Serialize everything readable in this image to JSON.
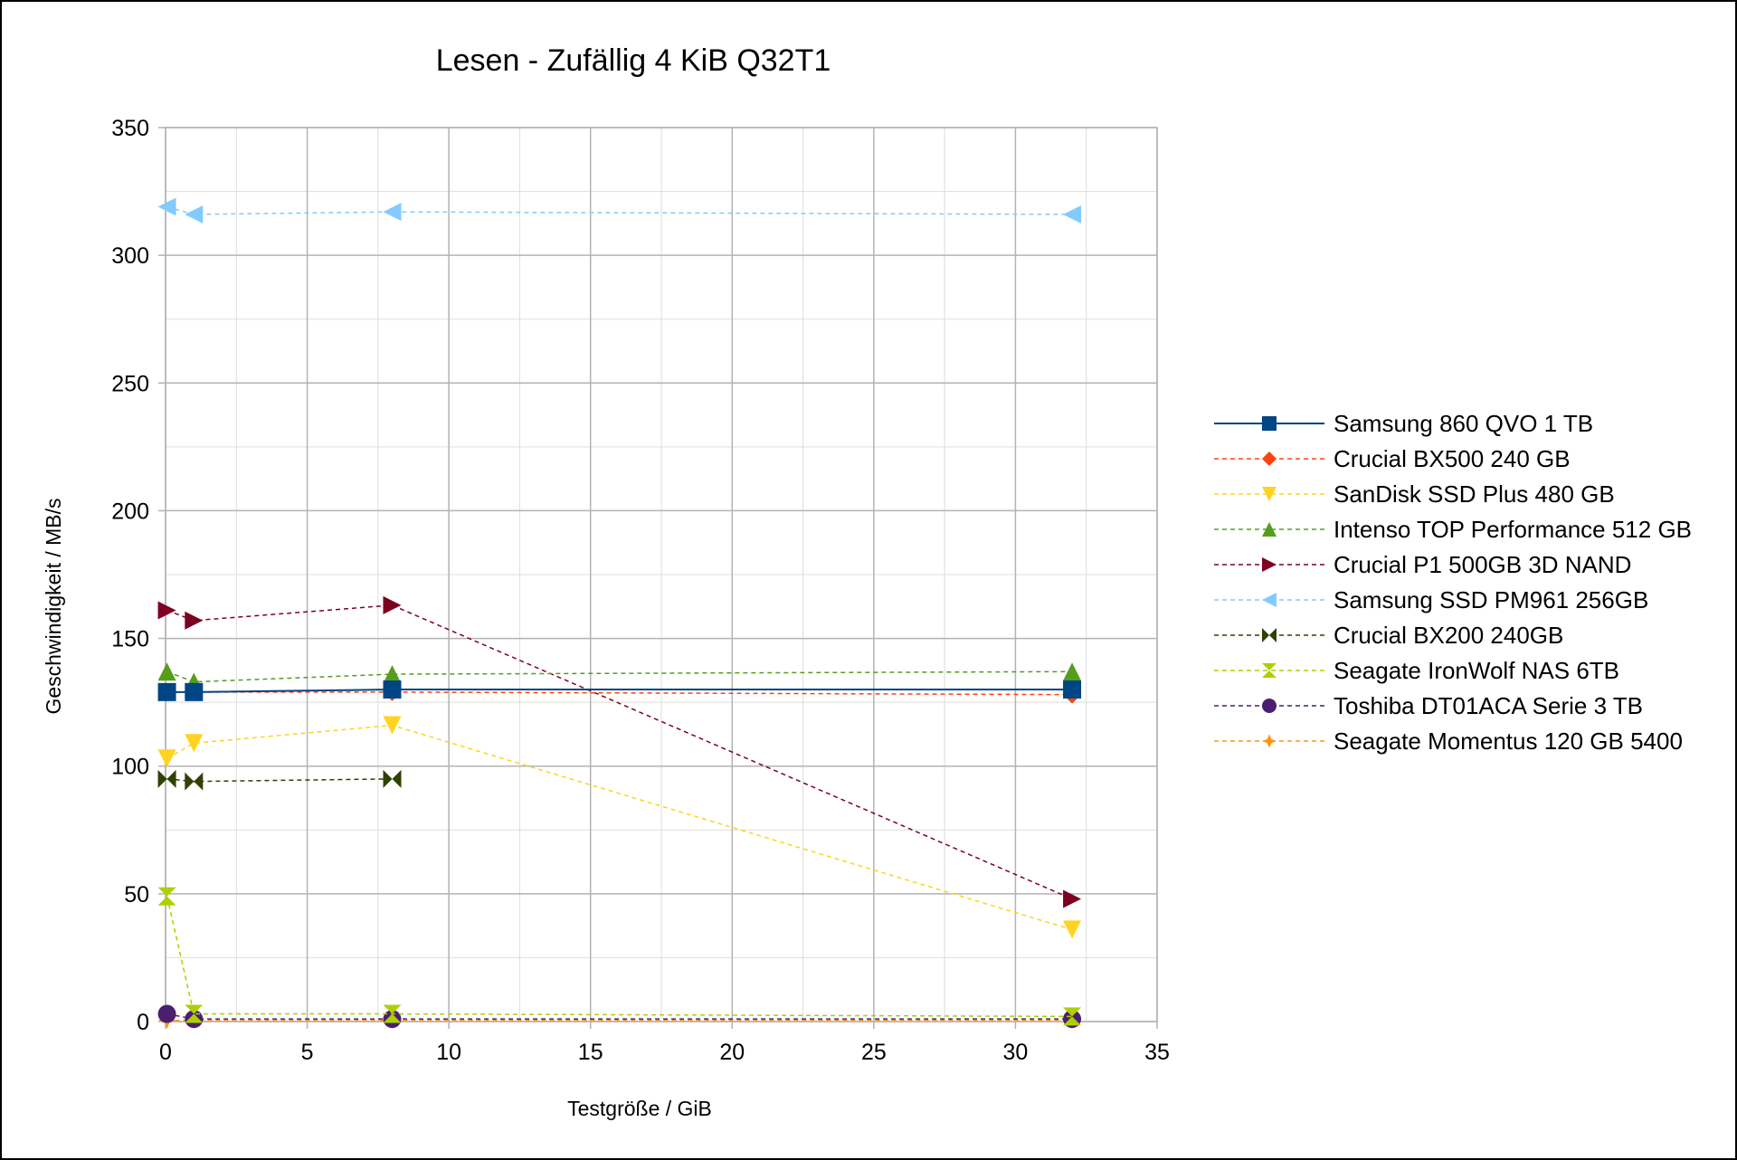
{
  "chart_data": {
    "type": "line",
    "title": "Lesen - Zufällig 4 KiB Q32T1",
    "xlabel": "Testgröße / GiB",
    "ylabel": "Geschwindigkeit / MB/s",
    "xlim": [
      0,
      35
    ],
    "ylim": [
      0,
      350
    ],
    "xticks": [
      0,
      5,
      10,
      15,
      20,
      25,
      30,
      35
    ],
    "yticks": [
      0,
      50,
      100,
      150,
      200,
      250,
      300,
      350
    ],
    "grid": true,
    "legend_position": "right",
    "series": [
      {
        "name": "Samsung 860 QVO 1 TB",
        "color": "#004586",
        "marker": "square",
        "line": "solid",
        "x": [
          0.05,
          1,
          8,
          32
        ],
        "y": [
          129,
          129,
          130,
          130
        ]
      },
      {
        "name": "Crucial  BX500 240 GB",
        "color": "#ff420e",
        "marker": "diamond",
        "line": "dashed",
        "x": [
          0.05,
          1,
          8,
          32
        ],
        "y": [
          129,
          129,
          129,
          128
        ]
      },
      {
        "name": "SanDisk SSD Plus 480 GB",
        "color": "#ffd320",
        "marker": "triangle-down",
        "line": "dashed",
        "x": [
          0.05,
          1,
          8,
          32
        ],
        "y": [
          103,
          109,
          116,
          36
        ]
      },
      {
        "name": "Intenso  TOP Performance 512 GB",
        "color": "#579d1c",
        "marker": "triangle-up",
        "line": "dashed",
        "x": [
          0.05,
          1,
          8,
          32
        ],
        "y": [
          137,
          133,
          136,
          137
        ]
      },
      {
        "name": "Crucial P1 500GB 3D NAND",
        "color": "#7e0021",
        "marker": "triangle-right",
        "line": "dashed",
        "x": [
          0.05,
          1,
          8,
          32
        ],
        "y": [
          161,
          157,
          163,
          48
        ]
      },
      {
        "name": "Samsung SSD PM961 256GB",
        "color": "#83caff",
        "marker": "triangle-left",
        "line": "dashed",
        "x": [
          0.05,
          1,
          8,
          32
        ],
        "y": [
          319,
          316,
          317,
          316
        ]
      },
      {
        "name": "Crucial BX200 240GB",
        "color": "#314004",
        "marker": "bowtie",
        "line": "dashed",
        "x": [
          0.05,
          1,
          8
        ],
        "y": [
          95,
          94,
          95
        ]
      },
      {
        "name": "Seagate IronWolf NAS 6TB",
        "color": "#aecf00",
        "marker": "hourglass",
        "line": "dashed",
        "x": [
          0.05,
          1,
          8,
          32
        ],
        "y": [
          49,
          3,
          3,
          2
        ]
      },
      {
        "name": "Toshiba DT01ACA Serie 3 TB",
        "color": "#4b1f6f",
        "marker": "circle",
        "line": "dashed",
        "x": [
          0.05,
          1,
          8,
          32
        ],
        "y": [
          3,
          1,
          1,
          1
        ]
      },
      {
        "name": "Seagate Momentus 120 GB 5400",
        "color": "#ff950e",
        "marker": "star",
        "line": "dashed",
        "x": [
          0.05,
          1,
          8,
          32
        ],
        "y": [
          0.5,
          0.5,
          0.5,
          0.5
        ]
      }
    ]
  }
}
